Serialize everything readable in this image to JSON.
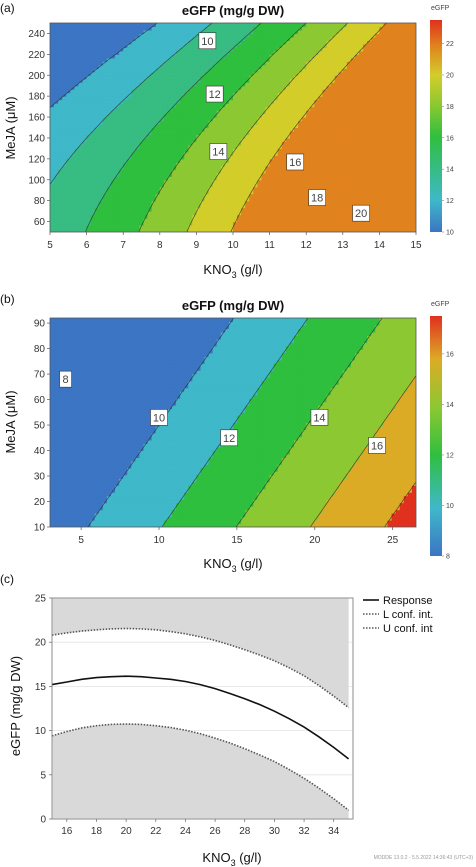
{
  "chart_data": [
    {
      "panel_label": "(a)",
      "type": "contour",
      "title": "eGFP (mg/g DW)",
      "xlabel": "KNO",
      "xlabel_sub": "3",
      "xlabel_unit": " (g/l)",
      "ylabel": "MeJA (μM)",
      "xlim": [
        5,
        15
      ],
      "ylim": [
        50,
        250
      ],
      "x_ticks": [
        5,
        6,
        7,
        8,
        9,
        10,
        11,
        12,
        13,
        14,
        15
      ],
      "y_ticks": [
        60,
        80,
        100,
        120,
        140,
        160,
        180,
        200,
        220,
        240
      ],
      "contour_levels": [
        10,
        12,
        14,
        16,
        18,
        20
      ],
      "contour_labels": [
        {
          "text": "10",
          "x": 9.3,
          "y": 233
        },
        {
          "text": "12",
          "x": 9.5,
          "y": 182
        },
        {
          "text": "14",
          "x": 9.6,
          "y": 127
        },
        {
          "text": "16",
          "x": 11.7,
          "y": 117
        },
        {
          "text": "18",
          "x": 12.3,
          "y": 83
        },
        {
          "text": "20",
          "x": 13.5,
          "y": 68
        }
      ],
      "colorbar": {
        "title": "eGFP",
        "range": [
          10,
          23.5
        ],
        "ticks": [
          10,
          12,
          14,
          16,
          18,
          20,
          22
        ]
      },
      "colors": [
        "#3b75c3",
        "#3fb8c9",
        "#37bc82",
        "#2fbf3f",
        "#8cc832",
        "#d3cd2a",
        "#e0821e",
        "#e0301e"
      ]
    },
    {
      "panel_label": "(b)",
      "type": "contour",
      "title": "eGFP (mg/g DW)",
      "xlabel": "KNO",
      "xlabel_sub": "3",
      "xlabel_unit": " (g/l)",
      "ylabel": "MeJA (μM)",
      "xlim": [
        3,
        26.5
      ],
      "ylim": [
        10,
        92
      ],
      "x_ticks": [
        5,
        10,
        15,
        20,
        25
      ],
      "y_ticks": [
        10,
        20,
        30,
        40,
        50,
        60,
        70,
        80,
        90
      ],
      "contour_levels": [
        8,
        10,
        12,
        14,
        16
      ],
      "contour_labels": [
        {
          "text": "8",
          "x": 4.0,
          "y": 68
        },
        {
          "text": "10",
          "x": 10.0,
          "y": 53
        },
        {
          "text": "12",
          "x": 14.5,
          "y": 45
        },
        {
          "text": "14",
          "x": 20.3,
          "y": 53
        },
        {
          "text": "16",
          "x": 24.0,
          "y": 42
        }
      ],
      "colorbar": {
        "title": "eGFP",
        "range": [
          8,
          17.5
        ],
        "ticks": [
          8,
          10,
          12,
          14,
          16
        ]
      },
      "colors": [
        "#3b75c3",
        "#3fb8c9",
        "#2fbf3f",
        "#8cc832",
        "#dcab26",
        "#e0301e"
      ]
    },
    {
      "panel_label": "(c)",
      "type": "line",
      "xlabel": "KNO",
      "xlabel_sub": "3",
      "xlabel_unit": " (g/l)",
      "ylabel": "eGFP (mg/g DW)",
      "xlim": [
        15,
        35.3
      ],
      "ylim": [
        0,
        25
      ],
      "x_ticks": [
        16,
        18,
        20,
        22,
        24,
        26,
        28,
        30,
        32,
        34
      ],
      "y_ticks": [
        0,
        5,
        10,
        15,
        20,
        25
      ],
      "x": [
        15,
        16,
        17,
        18,
        19,
        20,
        21,
        22,
        23,
        24,
        25,
        26,
        27,
        28,
        29,
        30,
        31,
        32,
        33,
        34,
        35
      ],
      "series": [
        {
          "name": "Response",
          "style": "solid",
          "values": [
            15.2,
            15.5,
            15.8,
            16.0,
            16.1,
            16.15,
            16.1,
            15.95,
            15.8,
            15.55,
            15.2,
            14.75,
            14.2,
            13.6,
            12.95,
            12.2,
            11.35,
            10.4,
            9.3,
            8.1,
            6.8
          ]
        },
        {
          "name": "L conf. int.",
          "style": "dotted",
          "values": [
            9.4,
            9.9,
            10.3,
            10.55,
            10.7,
            10.75,
            10.7,
            10.55,
            10.35,
            10.05,
            9.65,
            9.15,
            8.6,
            7.95,
            7.25,
            6.5,
            5.6,
            4.6,
            3.5,
            2.3,
            1.0
          ]
        },
        {
          "name": "U conf. int",
          "style": "dotted",
          "values": [
            20.8,
            21.05,
            21.25,
            21.4,
            21.5,
            21.55,
            21.5,
            21.4,
            21.2,
            20.95,
            20.6,
            20.2,
            19.7,
            19.15,
            18.55,
            17.9,
            17.1,
            16.2,
            15.1,
            13.9,
            12.6
          ]
        }
      ],
      "footer": "MODDE 13.0.2 - 5.5.2022 14:36:43 (UTC+3)"
    }
  ]
}
